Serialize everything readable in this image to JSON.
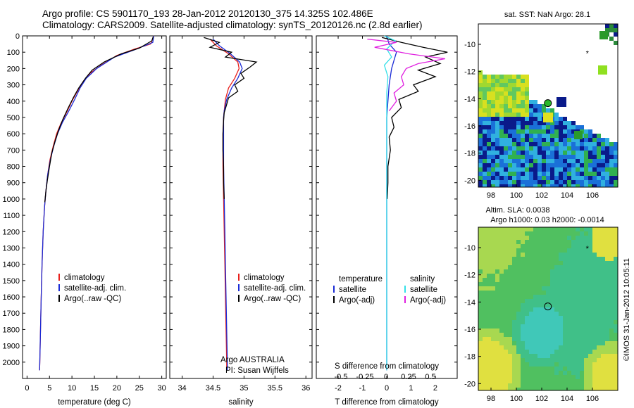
{
  "header": {
    "line1": "Argo profile: CS 5901170_193 28-Jan-2012 20120130_375 14.325S 102.486E",
    "line2": "Climatology: CARS2009. Satellite-adjusted climatology: synTS_20120126.nc (2.8d earlier)"
  },
  "colors": {
    "climatology": "#e8201c",
    "satellite": "#1a2bd6",
    "argo": "#000000",
    "salinity_satellite": "#33e0e8",
    "salinity_argo": "#e020e0"
  },
  "chart_data": [
    {
      "type": "line",
      "name": "temperature-profile",
      "xlabel": "temperature (deg C)",
      "ylabel": "",
      "xlim": [
        -1,
        31
      ],
      "ylim": [
        2100,
        0
      ],
      "xticks": [
        0,
        5,
        10,
        15,
        20,
        25,
        30
      ],
      "yticks": [
        0,
        100,
        200,
        300,
        400,
        500,
        600,
        700,
        800,
        900,
        1000,
        1100,
        1200,
        1300,
        1400,
        1500,
        1600,
        1700,
        1800,
        1900,
        2000
      ],
      "legend": {
        "position": "bottom-right",
        "entries": [
          "climatology",
          "satellite-adj. clim.",
          "Argo(..raw -QC)"
        ]
      },
      "series": [
        {
          "name": "climatology",
          "points": [
            [
              28.2,
              0
            ],
            [
              27.5,
              50
            ],
            [
              24,
              80
            ],
            [
              20,
              120
            ],
            [
              16.5,
              180
            ],
            [
              14,
              230
            ],
            [
              12.5,
              280
            ],
            [
              11.2,
              340
            ],
            [
              10,
              400
            ],
            [
              8.8,
              470
            ],
            [
              7.5,
              540
            ],
            [
              6.6,
              600
            ],
            [
              5.8,
              680
            ],
            [
              5.1,
              760
            ],
            [
              4.6,
              850
            ],
            [
              4.2,
              950
            ],
            [
              3.9,
              1050
            ],
            [
              3.6,
              1200
            ],
            [
              3.35,
              1400
            ],
            [
              3.15,
              1600
            ],
            [
              3,
              1800
            ],
            [
              2.85,
              2000
            ],
            [
              2.8,
              2050
            ]
          ]
        },
        {
          "name": "satellite-adj. clim.",
          "points": [
            [
              28.2,
              0
            ],
            [
              28,
              40
            ],
            [
              24,
              85
            ],
            [
              19.5,
              130
            ],
            [
              15.5,
              200
            ],
            [
              13.2,
              260
            ],
            [
              11.8,
              320
            ],
            [
              10.6,
              390
            ],
            [
              9.3,
              460
            ],
            [
              7.9,
              530
            ],
            [
              6.8,
              600
            ],
            [
              5.9,
              680
            ],
            [
              5.2,
              760
            ],
            [
              4.6,
              850
            ],
            [
              4.2,
              950
            ],
            [
              3.9,
              1050
            ],
            [
              3.6,
              1200
            ],
            [
              3.35,
              1400
            ],
            [
              3.15,
              1600
            ],
            [
              3,
              1800
            ],
            [
              2.85,
              2000
            ],
            [
              2.8,
              2050
            ]
          ]
        },
        {
          "name": "Argo(..raw -QC)",
          "points": [
            [
              28.1,
              5
            ],
            [
              27.8,
              30
            ],
            [
              25,
              75
            ],
            [
              21,
              110
            ],
            [
              17.2,
              160
            ],
            [
              14.5,
              210
            ],
            [
              13,
              260
            ],
            [
              11.5,
              320
            ],
            [
              10.3,
              380
            ],
            [
              9.2,
              440
            ],
            [
              8,
              510
            ],
            [
              7,
              580
            ],
            [
              6.2,
              650
            ],
            [
              5.5,
              720
            ],
            [
              5,
              800
            ],
            [
              4.55,
              880
            ],
            [
              4.2,
              950
            ],
            [
              3.95,
              1020
            ]
          ]
        }
      ]
    },
    {
      "type": "line",
      "name": "salinity-profile",
      "xlabel": "salinity",
      "xlim": [
        33.8,
        36.1
      ],
      "ylim": [
        2100,
        0
      ],
      "xticks": [
        34,
        34.5,
        35,
        35.5,
        36
      ],
      "legend": {
        "position": "bottom-right",
        "entries": [
          "climatology",
          "satellite-adj. clim.",
          "Argo(..raw -QC)"
        ]
      },
      "annotations": [
        "Argo AUSTRALIA",
        "PI: Susan Wijffels"
      ],
      "series": [
        {
          "name": "climatology",
          "points": [
            [
              34.45,
              20
            ],
            [
              34.55,
              60
            ],
            [
              34.75,
              110
            ],
            [
              34.9,
              160
            ],
            [
              34.92,
              200
            ],
            [
              34.85,
              260
            ],
            [
              34.75,
              320
            ],
            [
              34.7,
              390
            ],
            [
              34.68,
              460
            ],
            [
              34.67,
              500
            ],
            [
              34.66,
              600
            ],
            [
              34.66,
              800
            ],
            [
              34.67,
              1000
            ],
            [
              34.68,
              1200
            ],
            [
              34.69,
              1400
            ],
            [
              34.7,
              1600
            ],
            [
              34.71,
              1800
            ],
            [
              34.72,
              2000
            ],
            [
              34.72,
              2050
            ]
          ]
        },
        {
          "name": "satellite-adj. clim.",
          "points": [
            [
              34.5,
              20
            ],
            [
              34.6,
              60
            ],
            [
              34.78,
              110
            ],
            [
              34.93,
              160
            ],
            [
              34.97,
              200
            ],
            [
              34.9,
              260
            ],
            [
              34.8,
              320
            ],
            [
              34.72,
              390
            ],
            [
              34.68,
              460
            ],
            [
              34.67,
              500
            ],
            [
              34.67,
              600
            ],
            [
              34.67,
              800
            ],
            [
              34.68,
              1000
            ],
            [
              34.69,
              1200
            ],
            [
              34.7,
              1400
            ],
            [
              34.71,
              1600
            ],
            [
              34.72,
              1800
            ],
            [
              34.73,
              2000
            ],
            [
              34.73,
              2050
            ]
          ]
        },
        {
          "name": "Argo(..raw -QC)",
          "points": [
            [
              34.35,
              10
            ],
            [
              34.6,
              40
            ],
            [
              34.45,
              70
            ],
            [
              34.8,
              100
            ],
            [
              34.7,
              130
            ],
            [
              35.2,
              160
            ],
            [
              35.1,
              190
            ],
            [
              34.95,
              230
            ],
            [
              35.0,
              260
            ],
            [
              34.85,
              300
            ],
            [
              34.9,
              340
            ],
            [
              34.75,
              380
            ],
            [
              34.72,
              420
            ],
            [
              34.68,
              470
            ],
            [
              34.67,
              520
            ],
            [
              34.66,
              600
            ],
            [
              34.66,
              700
            ],
            [
              34.67,
              800
            ],
            [
              34.67,
              900
            ],
            [
              34.68,
              1000
            ]
          ]
        }
      ]
    },
    {
      "type": "line",
      "name": "difference-profile",
      "xlabel": "T difference from climatology",
      "title": "S difference from climatology",
      "xlim": [
        -2.9,
        2.9
      ],
      "ylim": [
        2100,
        0
      ],
      "xticks": [
        -2,
        -1,
        0,
        1,
        2
      ],
      "top_xticks": [
        "-0.5",
        "-0.25",
        "0",
        "0.25",
        "0.5"
      ],
      "legend_left": {
        "position": "bottom-left",
        "header": "temperature",
        "entries": [
          "satellite",
          "Argo(-adj)"
        ]
      },
      "legend_right": {
        "position": "bottom-right",
        "header": "salinity",
        "entries": [
          "satellite",
          "Argo(-adj)"
        ]
      },
      "series": [
        {
          "name": "T satellite",
          "points": [
            [
              0,
              0
            ],
            [
              0.1,
              50
            ],
            [
              0.4,
              100
            ],
            [
              0.3,
              150
            ],
            [
              0.2,
              200
            ],
            [
              0.1,
              300
            ],
            [
              0.05,
              400
            ],
            [
              0,
              500
            ],
            [
              0,
              600
            ],
            [
              0,
              800
            ],
            [
              0,
              1000
            ],
            [
              0,
              1200
            ],
            [
              0,
              1500
            ],
            [
              0,
              1800
            ],
            [
              0,
              2000
            ],
            [
              0,
              2050
            ]
          ]
        },
        {
          "name": "T Argo(-adj)",
          "points": [
            [
              -0.2,
              10
            ],
            [
              0.6,
              40
            ],
            [
              1.5,
              70
            ],
            [
              2.5,
              100
            ],
            [
              1.6,
              130
            ],
            [
              2.2,
              170
            ],
            [
              1.3,
              210
            ],
            [
              2.0,
              250
            ],
            [
              1.1,
              300
            ],
            [
              1.3,
              340
            ],
            [
              0.5,
              390
            ],
            [
              0.6,
              440
            ],
            [
              0.2,
              500
            ],
            [
              0.3,
              560
            ],
            [
              0.1,
              620
            ],
            [
              0.15,
              700
            ],
            [
              0.05,
              800
            ],
            [
              0.05,
              900
            ],
            [
              0.02,
              1000
            ]
          ]
        },
        {
          "name": "S satellite",
          "points": [
            [
              -0.1,
              0
            ],
            [
              0.35,
              30
            ],
            [
              0.0,
              80
            ],
            [
              0.2,
              130
            ],
            [
              -0.1,
              180
            ],
            [
              0.05,
              250
            ],
            [
              0,
              350
            ],
            [
              0,
              500
            ],
            [
              0,
              700
            ],
            [
              0,
              1000
            ],
            [
              0,
              1500
            ],
            [
              0,
              2000
            ],
            [
              0,
              2050
            ]
          ]
        },
        {
          "name": "S Argo(-adj)",
          "points": [
            [
              -0.8,
              20
            ],
            [
              0.4,
              40
            ],
            [
              -0.5,
              70
            ],
            [
              0.9,
              110
            ],
            [
              2.4,
              140
            ],
            [
              1.3,
              170
            ],
            [
              0.8,
              200
            ],
            [
              0.6,
              250
            ],
            [
              0.7,
              300
            ],
            [
              0.3,
              350
            ],
            [
              0.4,
              400
            ],
            [
              0.1,
              460
            ]
          ]
        }
      ]
    },
    {
      "type": "heatmap",
      "name": "sst-map",
      "title": "sat. SST: NaN Argo: 28.1",
      "xlim": [
        97,
        108
      ],
      "ylim": [
        -20.5,
        -8.5
      ],
      "xticks": [
        98,
        100,
        102,
        104,
        106
      ],
      "yticks": [
        -10,
        -12,
        -14,
        -16,
        -18,
        -20
      ],
      "argo_position": [
        102.486,
        -14.325
      ],
      "marker_star": [
        105.6,
        -10.6
      ]
    },
    {
      "type": "heatmap",
      "name": "sla-map",
      "title": "Altim. SLA: 0.0038",
      "subtitle": "Argo h1000: 0.03 h2000: -0.0014",
      "xlim": [
        97,
        108
      ],
      "ylim": [
        -20.5,
        -8.5
      ],
      "xticks": [
        98,
        100,
        102,
        104,
        106
      ],
      "yticks": [
        -10,
        -12,
        -14,
        -16,
        -18,
        -20
      ],
      "argo_position": [
        102.486,
        -14.325
      ],
      "marker_star": [
        105.6,
        -10.0
      ]
    }
  ],
  "footer": {
    "stamp": "©IMOS 31-Jan-2012 10:05:11"
  }
}
